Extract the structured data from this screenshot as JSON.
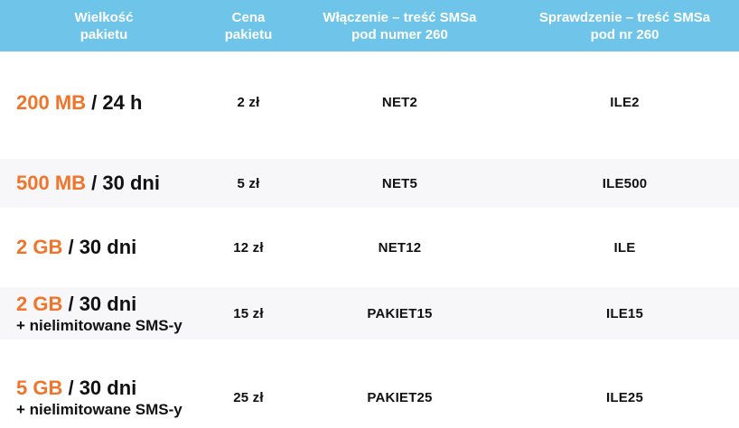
{
  "colors": {
    "page_bg": "#FFFFFF",
    "header_bg": "#6EC5E9",
    "header_text": "#FFFFFF",
    "accent_orange": "#F0752B",
    "body_text": "#111111",
    "shaded_row_bg": "#F7F7F9"
  },
  "table": {
    "columns": [
      {
        "id": "size",
        "label": "Wielkość\npakietu"
      },
      {
        "id": "price",
        "label": "Cena\npakietu"
      },
      {
        "id": "activation",
        "label": "Włączenie – treść SMSa\npod numer 260"
      },
      {
        "id": "check",
        "label": "Sprawdzenie – treść SMSa\npod nr 260"
      }
    ],
    "rows": [
      {
        "size_highlight": "200 MB",
        "size_rest": " / 24 h",
        "price": "2 zł",
        "activation_sms": "NET2",
        "check_sms": "ILE2",
        "shaded": false
      },
      {
        "size_highlight": "500 MB",
        "size_rest": " / 30 dni",
        "price": "5 zł",
        "activation_sms": "NET5",
        "check_sms": "ILE500",
        "shaded": true
      },
      {
        "size_highlight": "2 GB",
        "size_rest": " / 30 dni",
        "price": "12 zł",
        "activation_sms": "NET12",
        "check_sms": "ILE",
        "shaded": false
      },
      {
        "size_highlight": "2 GB",
        "size_rest": " / 30 dni",
        "size_note": "+ nielimitowane SMS-y",
        "price": "15 zł",
        "activation_sms": "PAKIET15",
        "check_sms": "ILE15",
        "shaded": true
      },
      {
        "size_highlight": "5 GB",
        "size_rest": " / 30 dni",
        "size_note": "+ nielimitowane SMS-y",
        "price": "25 zł",
        "activation_sms": "PAKIET25",
        "check_sms": "ILE25",
        "shaded": false
      }
    ]
  },
  "chart_data": {
    "type": "table",
    "title": "",
    "columns": [
      "Wielkość pakietu",
      "Cena pakietu",
      "Włączenie – treść SMSa pod numer 260",
      "Sprawdzenie – treść SMSa pod nr 260"
    ],
    "rows": [
      [
        "200 MB / 24 h",
        "2 zł",
        "NET2",
        "ILE2"
      ],
      [
        "500 MB / 30 dni",
        "5 zł",
        "NET5",
        "ILE500"
      ],
      [
        "2 GB / 30 dni",
        "12 zł",
        "NET12",
        "ILE"
      ],
      [
        "2 GB / 30 dni + nielimitowane SMS-y",
        "15 zł",
        "PAKIET15",
        "ILE15"
      ],
      [
        "5 GB / 30 dni + nielimitowane SMS-y",
        "25 zł",
        "PAKIET25",
        "ILE25"
      ]
    ],
    "layout_hints": {
      "header_style": "light-blue background, white bold text, centered, two lines",
      "shaded_rows": [
        1,
        3
      ],
      "size_values_color": "orange",
      "alignment": "first column left, others centered"
    }
  }
}
